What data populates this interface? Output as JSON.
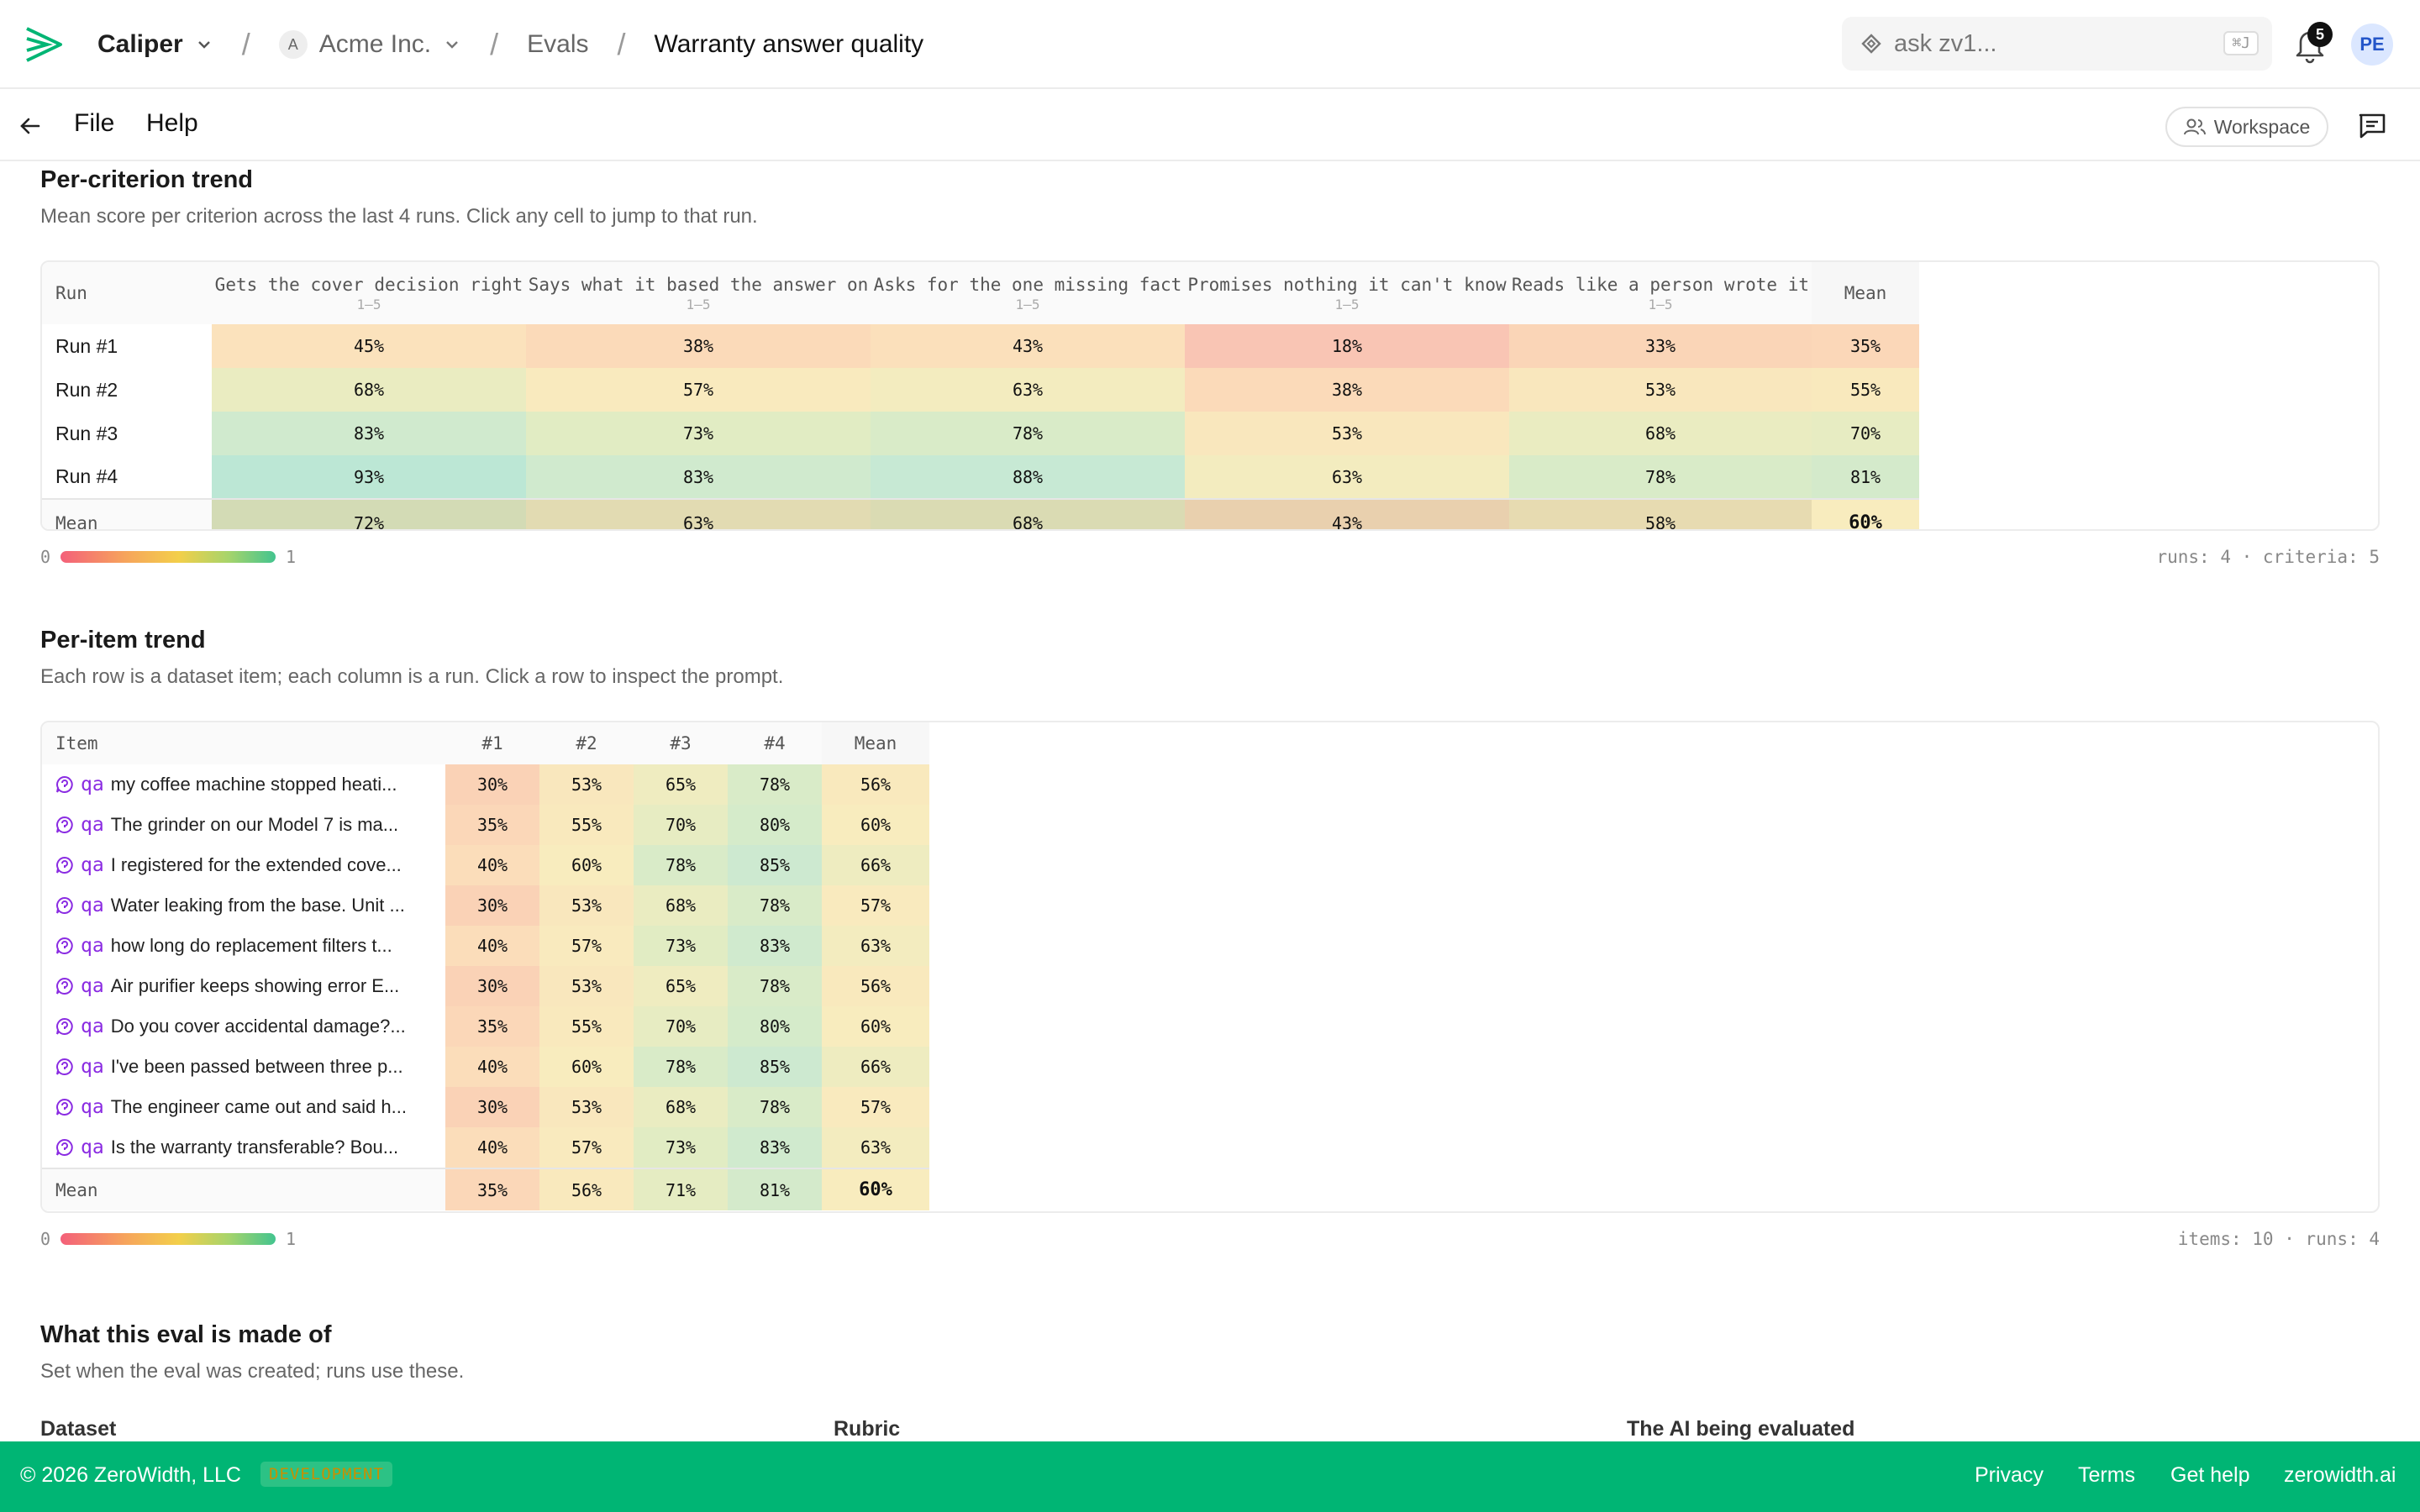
{
  "header": {
    "app_name": "Caliper",
    "org_initial": "A",
    "org_name": "Acme Inc.",
    "section": "Evals",
    "current": "Warranty answer quality",
    "search_placeholder": "ask zv1...",
    "search_shortcut": "⌘J",
    "notification_count": "5",
    "avatar_initials": "PE"
  },
  "menubar": {
    "file": "File",
    "help": "Help",
    "workspace": "Workspace"
  },
  "criterion_trend": {
    "title": "Per-criterion trend",
    "subtitle": "Mean score per criterion across the last 4 runs. Click any cell to jump to that run.",
    "row_header": "Run",
    "mean_label": "Mean",
    "columns": [
      {
        "name": "Gets the cover decision right",
        "scale": "1–5"
      },
      {
        "name": "Says what it based the answer on",
        "scale": "1–5"
      },
      {
        "name": "Asks for the one missing fact",
        "scale": "1–5"
      },
      {
        "name": "Promises nothing it can't know",
        "scale": "1–5"
      },
      {
        "name": "Reads like a person wrote it",
        "scale": "1–5"
      }
    ],
    "rows": [
      {
        "label": "Run #1",
        "values": [
          45,
          38,
          43,
          18,
          33
        ],
        "mean": 35
      },
      {
        "label": "Run #2",
        "values": [
          68,
          57,
          63,
          38,
          53
        ],
        "mean": 55
      },
      {
        "label": "Run #3",
        "values": [
          83,
          73,
          78,
          53,
          68
        ],
        "mean": 70
      },
      {
        "label": "Run #4",
        "values": [
          93,
          83,
          88,
          63,
          78
        ],
        "mean": 81
      }
    ],
    "mean_row": {
      "label": "Mean",
      "values": [
        72,
        63,
        68,
        43,
        58
      ],
      "mean": 60
    },
    "legend_min": "0",
    "legend_max": "1",
    "meta": "runs: 4 · criteria: 5"
  },
  "item_trend": {
    "title": "Per-item trend",
    "subtitle": "Each row is a dataset item; each column is a run. Click a row to inspect the prompt.",
    "row_header": "Item",
    "runs": [
      "#1",
      "#2",
      "#3",
      "#4"
    ],
    "mean_label": "Mean",
    "tag": "qa",
    "rows": [
      {
        "text": "my coffee machine stopped heati...",
        "values": [
          30,
          53,
          65,
          78
        ],
        "mean": 56
      },
      {
        "text": "The grinder on our Model 7 is ma...",
        "values": [
          35,
          55,
          70,
          80
        ],
        "mean": 60
      },
      {
        "text": "I registered for the extended cove...",
        "values": [
          40,
          60,
          78,
          85
        ],
        "mean": 66
      },
      {
        "text": "Water leaking from the base. Unit ...",
        "values": [
          30,
          53,
          68,
          78
        ],
        "mean": 57
      },
      {
        "text": "how long do replacement filters t...",
        "values": [
          40,
          57,
          73,
          83
        ],
        "mean": 63
      },
      {
        "text": "Air purifier keeps showing error E...",
        "values": [
          30,
          53,
          65,
          78
        ],
        "mean": 56
      },
      {
        "text": "Do you cover accidental damage?...",
        "values": [
          35,
          55,
          70,
          80
        ],
        "mean": 60
      },
      {
        "text": "I've been passed between three p...",
        "values": [
          40,
          60,
          78,
          85
        ],
        "mean": 66
      },
      {
        "text": "The engineer came out and said h...",
        "values": [
          30,
          53,
          68,
          78
        ],
        "mean": 57
      },
      {
        "text": "Is the warranty transferable? Bou...",
        "values": [
          40,
          57,
          73,
          83
        ],
        "mean": 63
      }
    ],
    "mean_row": {
      "label": "Mean",
      "values": [
        35,
        56,
        71,
        81
      ],
      "mean": 60
    },
    "legend_min": "0",
    "legend_max": "1",
    "meta": "items: 10 · runs: 4"
  },
  "composition": {
    "title": "What this eval is made of",
    "subtitle": "Set when the eval was created; runs use these.",
    "col_dataset": "Dataset",
    "col_rubric": "Rubric",
    "col_ai": "The AI being evaluated"
  },
  "footer": {
    "copyright": "© 2026 ZeroWidth, LLC",
    "env_badge": "DEVELOPMENT",
    "links": [
      "Privacy",
      "Terms",
      "Get help",
      "zerowidth.ai"
    ]
  },
  "colors": {
    "accent": "#00b574",
    "qa_tag": "#8a2be2"
  }
}
